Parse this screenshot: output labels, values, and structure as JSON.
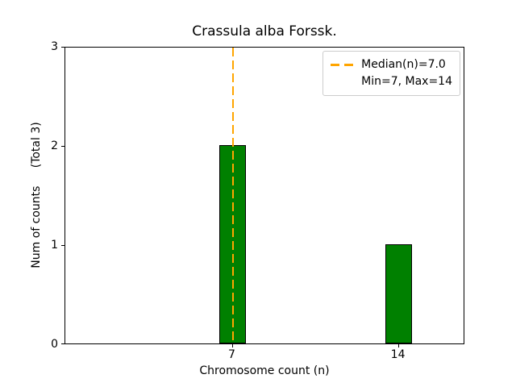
{
  "chart_data": {
    "type": "bar",
    "title": "Crassula alba Forssk.",
    "xlabel": "Chromosome count (n)",
    "ylabel": "Num of counts     (Total 3)",
    "categories": [
      7,
      14
    ],
    "values": [
      2,
      1
    ],
    "total_counts": 3,
    "xticks": [
      "7",
      "14"
    ],
    "yticks": [
      0,
      1,
      2,
      3
    ],
    "ylim": [
      0,
      3
    ],
    "grid": false,
    "bar_color": "#008000",
    "bar_edge_color": "#000000",
    "median_line": {
      "x": 7.0,
      "color": "#FFA500",
      "style": "dashed"
    },
    "legend": {
      "position": "upper right",
      "entries": [
        {
          "label": "Median(n)=7.0",
          "marker": "dashed"
        },
        {
          "label": "Min=7, Max=14",
          "marker": "none"
        }
      ]
    }
  }
}
